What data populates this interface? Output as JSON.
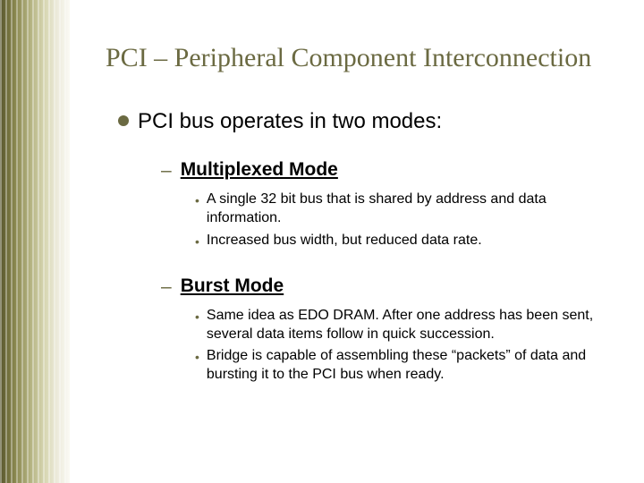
{
  "title": "PCI – Peripheral Component Interconnection",
  "level1": {
    "text": "PCI bus operates in two modes:"
  },
  "sectionA": {
    "heading": "Multiplexed Mode",
    "b1": "A single 32 bit bus that is shared by address and data information.",
    "b2": "Increased bus width, but reduced data rate."
  },
  "sectionB": {
    "heading": "Burst Mode",
    "b1": "Same idea as EDO DRAM. After one address has been sent, several data items follow in quick succession.",
    "b2": "Bridge is capable of assembling these “packets” of data and bursting it to the PCI bus when ready."
  },
  "colors": {
    "accent": "#6b6a42",
    "text": "#000000",
    "background": "#ffffff"
  },
  "typography": {
    "title_font": "Times New Roman",
    "title_size_pt": 22,
    "body_font": "Arial",
    "l1_size_pt": 18,
    "l2_size_pt": 16,
    "l3_size_pt": 12
  }
}
